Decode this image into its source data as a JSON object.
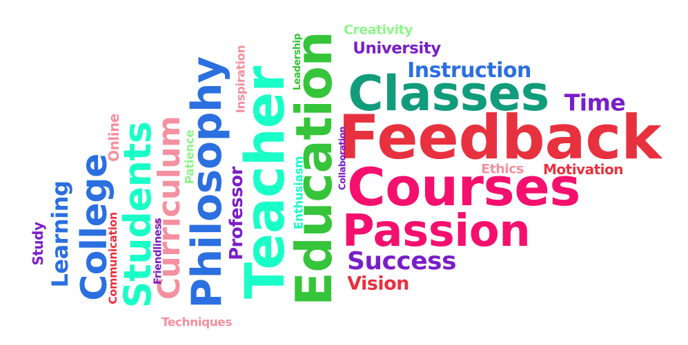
{
  "words": [
    {
      "text": "Feedback",
      "color": "#e8313f"
    },
    {
      "text": "Courses",
      "color": "#f5106e"
    },
    {
      "text": "Passion",
      "color": "#f5106e"
    },
    {
      "text": "Classes",
      "color": "#119c7c"
    },
    {
      "text": "Instruction",
      "color": "#2b6fe0"
    },
    {
      "text": "University",
      "color": "#7a1ec8"
    },
    {
      "text": "Creativity",
      "color": "#8ef58c"
    },
    {
      "text": "Time",
      "color": "#7a1ec8"
    },
    {
      "text": "Ethics",
      "color": "#f490a0"
    },
    {
      "text": "Motivation",
      "color": "#e8313f"
    },
    {
      "text": "Success",
      "color": "#7a1ec8"
    },
    {
      "text": "Vision",
      "color": "#e8313f"
    },
    {
      "text": "Education",
      "color": "#35c43a"
    },
    {
      "text": "Teacher",
      "color": "#1affc8"
    },
    {
      "text": "Philosophy",
      "color": "#2b6fe0"
    },
    {
      "text": "Students",
      "color": "#1affc8"
    },
    {
      "text": "Curriculum",
      "color": "#f490a0"
    },
    {
      "text": "College",
      "color": "#2b6fe0"
    },
    {
      "text": "Learning",
      "color": "#2b6fe0"
    },
    {
      "text": "Study",
      "color": "#7a1ec8"
    },
    {
      "text": "Communication",
      "color": "#e8313f"
    },
    {
      "text": "Online",
      "color": "#f490a0"
    },
    {
      "text": "Friendliness",
      "color": "#7a1ec8"
    },
    {
      "text": "Patience",
      "color": "#8ef58c"
    },
    {
      "text": "Professor",
      "color": "#7a1ec8"
    },
    {
      "text": "Inspiration",
      "color": "#f490a0"
    },
    {
      "text": "Enthusiasm",
      "color": "#1affc8"
    },
    {
      "text": "Leadership",
      "color": "#35c43a"
    },
    {
      "text": "Collaboration",
      "color": "#7a1ec8"
    },
    {
      "text": "Techniques",
      "color": "#f490a0"
    }
  ]
}
